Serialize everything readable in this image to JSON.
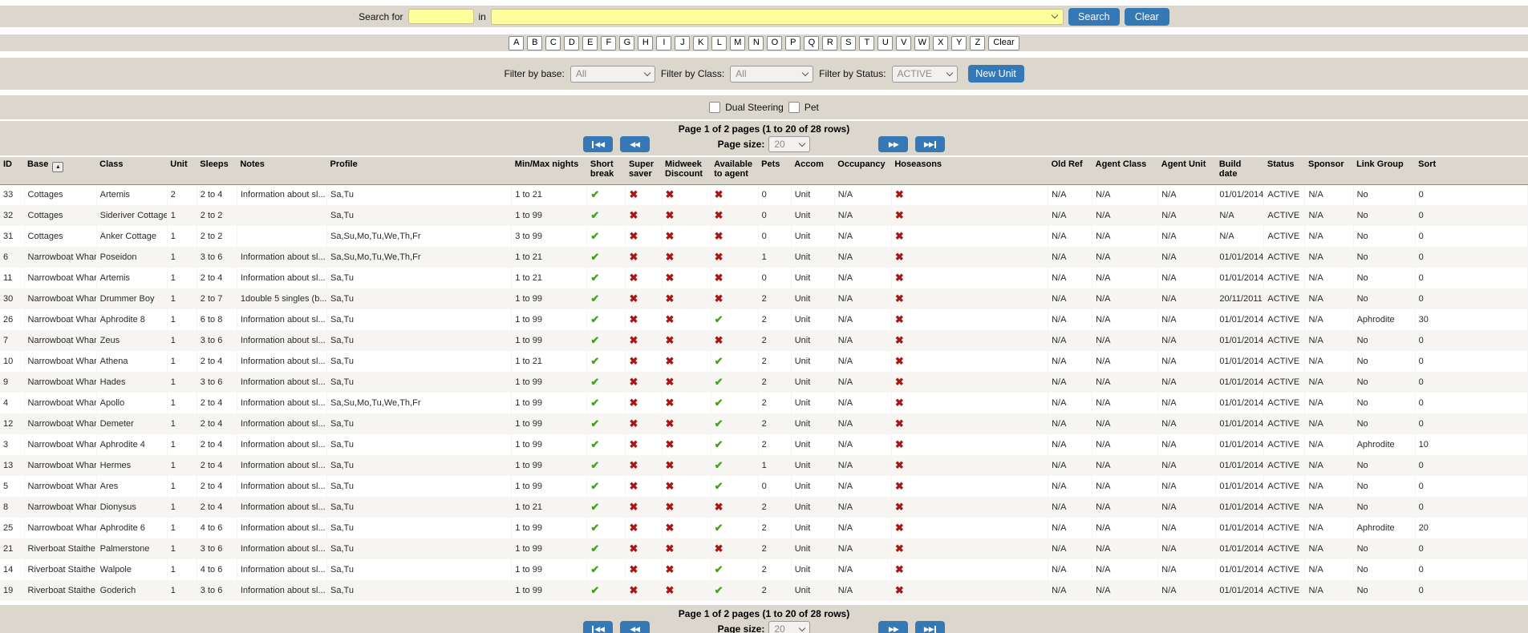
{
  "search_bar": {
    "label": "Search for",
    "input_value": "",
    "in_label": "in",
    "field_select_value": "",
    "search_button": "Search",
    "clear_button": "Clear"
  },
  "alphabet": {
    "letters": [
      "A",
      "B",
      "C",
      "D",
      "E",
      "F",
      "G",
      "H",
      "I",
      "J",
      "K",
      "L",
      "M",
      "N",
      "O",
      "P",
      "Q",
      "R",
      "S",
      "T",
      "U",
      "V",
      "W",
      "X",
      "Y",
      "Z"
    ],
    "clear_label": "Clear"
  },
  "filters": {
    "base_label": "Filter by base:",
    "base_value": "All",
    "class_label": "Filter by Class:",
    "class_value": "All",
    "status_label": "Filter by Status:",
    "status_value": "ACTIVE",
    "new_unit_button": "New Unit"
  },
  "options": {
    "dual_steering_label": "Dual Steering",
    "dual_steering_checked": false,
    "pet_label": "Pet",
    "pet_checked": false
  },
  "pagination": {
    "summary": "Page 1 of 2 pages (1 to 20 of 28 rows)",
    "page_size_label": "Page size:",
    "page_size": "20"
  },
  "table": {
    "columns": [
      {
        "key": "id",
        "label": "ID"
      },
      {
        "key": "base",
        "label": "Base",
        "sortable": true
      },
      {
        "key": "class",
        "label": "Class"
      },
      {
        "key": "unit",
        "label": "Unit"
      },
      {
        "key": "sleeps",
        "label": "Sleeps"
      },
      {
        "key": "notes",
        "label": "Notes"
      },
      {
        "key": "profile",
        "label": "Profile"
      },
      {
        "key": "min_max_nights",
        "label": "Min/Max nights"
      },
      {
        "key": "short_break",
        "label": "Short break"
      },
      {
        "key": "super_saver",
        "label": "Super saver"
      },
      {
        "key": "midweek_discount",
        "label": "Midweek Discount"
      },
      {
        "key": "available_to_agent",
        "label": "Available to agent"
      },
      {
        "key": "pets",
        "label": "Pets"
      },
      {
        "key": "accom",
        "label": "Accom"
      },
      {
        "key": "occupancy",
        "label": "Occupancy"
      },
      {
        "key": "hoseasons",
        "label": "Hoseasons"
      },
      {
        "key": "old_ref",
        "label": "Old Ref"
      },
      {
        "key": "agent_class",
        "label": "Agent Class"
      },
      {
        "key": "agent_unit",
        "label": "Agent Unit"
      },
      {
        "key": "build_date",
        "label": "Build date"
      },
      {
        "key": "status",
        "label": "Status"
      },
      {
        "key": "sponsor",
        "label": "Sponsor"
      },
      {
        "key": "link_group",
        "label": "Link Group"
      },
      {
        "key": "sort",
        "label": "Sort"
      }
    ],
    "rows": [
      [
        "33",
        "Cottages",
        "Artemis",
        "2",
        "2 to 4",
        "Information about sl...",
        "Sa,Tu",
        "1 to 21",
        "CHECK",
        "CROSS",
        "CROSS",
        "CROSS",
        "0",
        "Unit",
        "N/A",
        "CROSS",
        "N/A",
        "N/A",
        "N/A",
        "01/01/2014",
        "ACTIVE",
        "N/A",
        "No",
        "0"
      ],
      [
        "32",
        "Cottages",
        "Sideriver Cottage",
        "1",
        "2 to 2",
        "",
        "Sa,Tu",
        "1 to 99",
        "CHECK",
        "CROSS",
        "CROSS",
        "CROSS",
        "0",
        "Unit",
        "N/A",
        "CROSS",
        "N/A",
        "N/A",
        "N/A",
        "N/A",
        "ACTIVE",
        "N/A",
        "No",
        "0"
      ],
      [
        "31",
        "Cottages",
        "Anker Cottage",
        "1",
        "2 to 2",
        "",
        "Sa,Su,Mo,Tu,We,Th,Fr",
        "3 to 99",
        "CHECK",
        "CROSS",
        "CROSS",
        "CROSS",
        "0",
        "Unit",
        "N/A",
        "CROSS",
        "N/A",
        "N/A",
        "N/A",
        "N/A",
        "ACTIVE",
        "N/A",
        "No",
        "0"
      ],
      [
        "6",
        "Narrowboat Wharf",
        "Poseidon",
        "1",
        "3 to 6",
        "Information about sl...",
        "Sa,Su,Mo,Tu,We,Th,Fr",
        "1 to 21",
        "CHECK",
        "CROSS",
        "CROSS",
        "CROSS",
        "1",
        "Unit",
        "N/A",
        "CROSS",
        "N/A",
        "N/A",
        "N/A",
        "01/01/2014",
        "ACTIVE",
        "N/A",
        "No",
        "0"
      ],
      [
        "11",
        "Narrowboat Wharf",
        "Artemis",
        "1",
        "2 to 4",
        "Information about sl...",
        "Sa,Tu",
        "1 to 21",
        "CHECK",
        "CROSS",
        "CROSS",
        "CROSS",
        "0",
        "Unit",
        "N/A",
        "CROSS",
        "N/A",
        "N/A",
        "N/A",
        "01/01/2014",
        "ACTIVE",
        "N/A",
        "No",
        "0"
      ],
      [
        "30",
        "Narrowboat Wharf",
        "Drummer Boy",
        "1",
        "2 to 7",
        "1double 5 singles (b...",
        "Sa,Tu",
        "1 to 99",
        "CHECK",
        "CROSS",
        "CROSS",
        "CROSS",
        "2",
        "Unit",
        "N/A",
        "CROSS",
        "N/A",
        "N/A",
        "N/A",
        "20/11/2011",
        "ACTIVE",
        "N/A",
        "No",
        "0"
      ],
      [
        "26",
        "Narrowboat Wharf",
        "Aphrodite 8",
        "1",
        "6 to 8",
        "Information about sl...",
        "Sa,Tu",
        "1 to 99",
        "CHECK",
        "CROSS",
        "CROSS",
        "CHECK",
        "2",
        "Unit",
        "N/A",
        "CROSS",
        "N/A",
        "N/A",
        "N/A",
        "01/01/2014",
        "ACTIVE",
        "N/A",
        "Aphrodite",
        "30"
      ],
      [
        "7",
        "Narrowboat Wharf",
        "Zeus",
        "1",
        "3 to 6",
        "Information about sl...",
        "Sa,Tu",
        "1 to 99",
        "CHECK",
        "CROSS",
        "CROSS",
        "CROSS",
        "2",
        "Unit",
        "N/A",
        "CROSS",
        "N/A",
        "N/A",
        "N/A",
        "01/01/2014",
        "ACTIVE",
        "N/A",
        "No",
        "0"
      ],
      [
        "10",
        "Narrowboat Wharf",
        "Athena",
        "1",
        "2 to 4",
        "Information about sl...",
        "Sa,Tu",
        "1 to 21",
        "CHECK",
        "CROSS",
        "CROSS",
        "CHECK",
        "2",
        "Unit",
        "N/A",
        "CROSS",
        "N/A",
        "N/A",
        "N/A",
        "01/01/2014",
        "ACTIVE",
        "N/A",
        "No",
        "0"
      ],
      [
        "9",
        "Narrowboat Wharf",
        "Hades",
        "1",
        "3 to 6",
        "Information about sl...",
        "Sa,Tu",
        "1 to 99",
        "CHECK",
        "CROSS",
        "CROSS",
        "CHECK",
        "2",
        "Unit",
        "N/A",
        "CROSS",
        "N/A",
        "N/A",
        "N/A",
        "01/01/2014",
        "ACTIVE",
        "N/A",
        "No",
        "0"
      ],
      [
        "4",
        "Narrowboat Wharf",
        "Apollo",
        "1",
        "2 to 4",
        "Information about sl...",
        "Sa,Su,Mo,Tu,We,Th,Fr",
        "1 to 99",
        "CHECK",
        "CROSS",
        "CROSS",
        "CHECK",
        "2",
        "Unit",
        "N/A",
        "CROSS",
        "N/A",
        "N/A",
        "N/A",
        "01/01/2014",
        "ACTIVE",
        "N/A",
        "No",
        "0"
      ],
      [
        "12",
        "Narrowboat Wharf",
        "Demeter",
        "1",
        "2 to 4",
        "Information about sl...",
        "Sa,Tu",
        "1 to 99",
        "CHECK",
        "CROSS",
        "CROSS",
        "CHECK",
        "2",
        "Unit",
        "N/A",
        "CROSS",
        "N/A",
        "N/A",
        "N/A",
        "01/01/2014",
        "ACTIVE",
        "N/A",
        "No",
        "0"
      ],
      [
        "3",
        "Narrowboat Wharf",
        "Aphrodite 4",
        "1",
        "2 to 4",
        "Information about sl...",
        "Sa,Tu",
        "1 to 99",
        "CHECK",
        "CROSS",
        "CROSS",
        "CHECK",
        "2",
        "Unit",
        "N/A",
        "CROSS",
        "N/A",
        "N/A",
        "N/A",
        "01/01/2014",
        "ACTIVE",
        "N/A",
        "Aphrodite",
        "10"
      ],
      [
        "13",
        "Narrowboat Wharf",
        "Hermes",
        "1",
        "2 to 4",
        "Information about sl...",
        "Sa,Tu",
        "1 to 99",
        "CHECK",
        "CROSS",
        "CROSS",
        "CHECK",
        "1",
        "Unit",
        "N/A",
        "CROSS",
        "N/A",
        "N/A",
        "N/A",
        "01/01/2014",
        "ACTIVE",
        "N/A",
        "No",
        "0"
      ],
      [
        "5",
        "Narrowboat Wharf",
        "Ares",
        "1",
        "2 to 4",
        "Information about sl...",
        "Sa,Tu",
        "1 to 99",
        "CHECK",
        "CROSS",
        "CROSS",
        "CHECK",
        "0",
        "Unit",
        "N/A",
        "CROSS",
        "N/A",
        "N/A",
        "N/A",
        "01/01/2014",
        "ACTIVE",
        "N/A",
        "No",
        "0"
      ],
      [
        "8",
        "Narrowboat Wharf",
        "Dionysus",
        "1",
        "2 to 4",
        "Information about sl...",
        "Sa,Tu",
        "1 to 21",
        "CHECK",
        "CROSS",
        "CROSS",
        "CROSS",
        "2",
        "Unit",
        "N/A",
        "CROSS",
        "N/A",
        "N/A",
        "N/A",
        "01/01/2014",
        "ACTIVE",
        "N/A",
        "No",
        "0"
      ],
      [
        "25",
        "Narrowboat Wharf",
        "Aphrodite 6",
        "1",
        "4 to 6",
        "Information about sl...",
        "Sa,Tu",
        "1 to 99",
        "CHECK",
        "CROSS",
        "CROSS",
        "CHECK",
        "2",
        "Unit",
        "N/A",
        "CROSS",
        "N/A",
        "N/A",
        "N/A",
        "01/01/2014",
        "ACTIVE",
        "N/A",
        "Aphrodite",
        "20"
      ],
      [
        "21",
        "Riverboat Staithe",
        "Palmerstone",
        "1",
        "3 to 6",
        "Information about sl...",
        "Sa,Tu",
        "1 to 99",
        "CHECK",
        "CROSS",
        "CROSS",
        "CROSS",
        "2",
        "Unit",
        "N/A",
        "CROSS",
        "N/A",
        "N/A",
        "N/A",
        "01/01/2014",
        "ACTIVE",
        "N/A",
        "No",
        "0"
      ],
      [
        "14",
        "Riverboat Staithe",
        "Walpole",
        "1",
        "4 to 6",
        "Information about sl...",
        "Sa,Tu",
        "1 to 99",
        "CHECK",
        "CROSS",
        "CROSS",
        "CHECK",
        "2",
        "Unit",
        "N/A",
        "CROSS",
        "N/A",
        "N/A",
        "N/A",
        "01/01/2014",
        "ACTIVE",
        "N/A",
        "No",
        "0"
      ],
      [
        "19",
        "Riverboat Staithe",
        "Goderich",
        "1",
        "3 to 6",
        "Information about sl...",
        "Sa,Tu",
        "1 to 99",
        "CHECK",
        "CROSS",
        "CROSS",
        "CHECK",
        "2",
        "Unit",
        "N/A",
        "CROSS",
        "N/A",
        "N/A",
        "N/A",
        "01/01/2014",
        "ACTIVE",
        "N/A",
        "No",
        "0"
      ]
    ]
  },
  "colors": {
    "bar_bg": "#dbd7cc",
    "highlight_yellow": "#feff9c",
    "button_blue": "#3478b5",
    "check_green": "#3fa51e",
    "cross_red": "#aa1515",
    "row_alt_bg": "#f6f5f2"
  }
}
